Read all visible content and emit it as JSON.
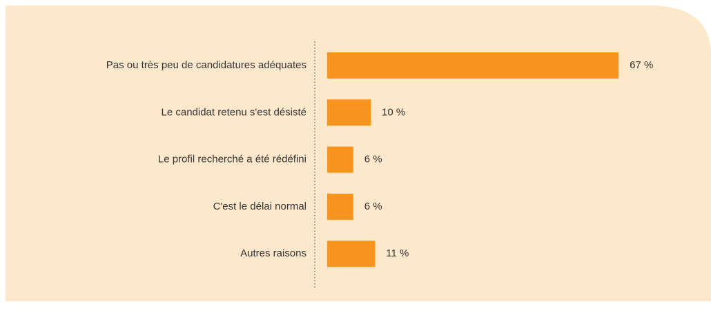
{
  "chart_data": {
    "type": "bar",
    "orientation": "horizontal",
    "categories": [
      "Pas ou très peu de candidatures adéquates",
      "Le candidat retenu s'est désisté",
      "Le profil recherché a été rédéfini",
      "C'est le délai normal",
      "Autres raisons"
    ],
    "values": [
      67,
      10,
      6,
      6,
      11
    ],
    "value_labels": [
      "67 %",
      "10 %",
      "6 %",
      "6 %",
      "11 %"
    ],
    "color": "#f7941d"
  }
}
